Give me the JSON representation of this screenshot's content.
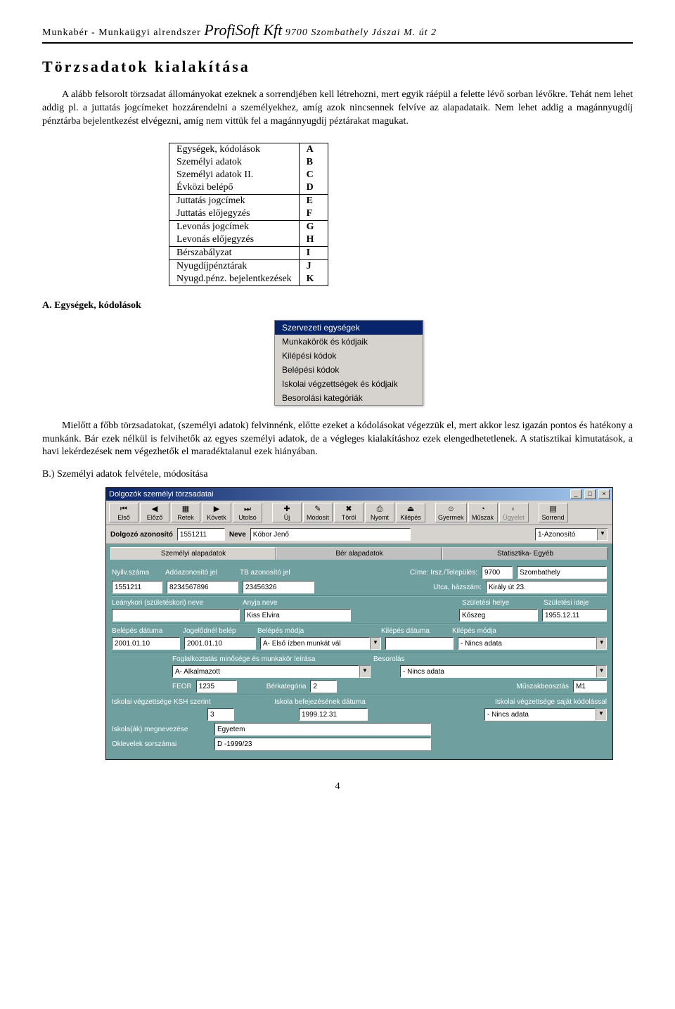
{
  "header": {
    "left": "Munkabér - Munkaügyi alrendszer",
    "company": "ProfiSoft Kft",
    "addr": "9700 Szombathely Jászai M. út 2"
  },
  "title": "Törzsadatok kialakítása",
  "para1": "A alább felsorolt törzsadat állományokat ezeknek a sorrendjében kell létrehozni, mert egyik ráépül a felette lévő sorban lévőkre. Tehát nem lehet addig pl. a juttatás jogcímeket hozzárendelni a személyekhez, amíg azok nincsennek felvíve az alapadataik. Nem lehet addig a magánnyugdíj pénztárba bejelentkezést elvégezni, amíg nem vittük fel a magánnyugdíj péztárakat magukat.",
  "codes": [
    {
      "label": "Egységek, kódolások",
      "letter": "A",
      "top": true
    },
    {
      "label": "Személyi adatok",
      "letter": "B"
    },
    {
      "label": "Személyi adatok II.",
      "letter": "C"
    },
    {
      "label": "Évközi belépő",
      "letter": "D",
      "bot": true
    },
    {
      "label": "Juttatás jogcímek",
      "letter": "E",
      "top": true
    },
    {
      "label": "Juttatás előjegyzés",
      "letter": "F",
      "bot": true
    },
    {
      "label": "Levonás jogcímek",
      "letter": "G",
      "top": true
    },
    {
      "label": "Levonás előjegyzés",
      "letter": "H",
      "bot": true
    },
    {
      "label": "Bérszabályzat",
      "letter": "I",
      "top": true,
      "bot": true
    },
    {
      "label": "Nyugdíjpénztárak",
      "letter": "J",
      "top": true
    },
    {
      "label": "Nyugd.pénz. bejelentkezések",
      "letter": "K",
      "bot": true
    }
  ],
  "subA": "A. Egységek, kódolások",
  "menu": {
    "items": [
      {
        "label": "Szervezeti egységek",
        "sel": true
      },
      {
        "label": "Munkakörök és kódjaik"
      },
      {
        "label": "Kilépési kódok"
      },
      {
        "label": "Belépési kódok"
      },
      {
        "label": "Iskolai végzettségek és kódjaik"
      },
      {
        "label": "Besorolási kategóriák"
      }
    ]
  },
  "para2": "Mielőtt a főbb törzsadatokat, (személyi adatok) felvinnénk, előtte ezeket a kódolásokat végezzük el, mert akkor lesz igazán pontos és hatékony a munkánk. Bár ezek nélkül is felvihetők az egyes személyi adatok, de a végleges kialakításhoz ezek elengedhetetlenek. A statisztikai kimutatások, a havi lekérdezések nem végezhetők el maradéktalanul ezek hiányában.",
  "subB": "B.) Személyi adatok felvétele, módosítása",
  "app": {
    "title": "Dolgozók személyi törzsadatai",
    "toolbar": [
      {
        "label": "Első",
        "ico": "⏮"
      },
      {
        "label": "Előző",
        "ico": "◀"
      },
      {
        "label": "Retek",
        "ico": "▦"
      },
      {
        "label": "Követk",
        "ico": "▶"
      },
      {
        "label": "Utolsó",
        "ico": "⏭"
      },
      {
        "gap": true
      },
      {
        "label": "Új",
        "ico": "✚"
      },
      {
        "label": "Módosít",
        "ico": "✎"
      },
      {
        "label": "Töröl",
        "ico": "✖"
      },
      {
        "label": "Nyomt",
        "ico": "⎙"
      },
      {
        "label": "Kilépés",
        "ico": "⏏"
      },
      {
        "gap": true
      },
      {
        "label": "Gyermek",
        "ico": "☺"
      },
      {
        "label": "Műszak",
        "ico": "◔"
      },
      {
        "label": "Ügyelet",
        "ico": "◐",
        "disabled": true
      },
      {
        "gap": true
      },
      {
        "label": "Sorrend",
        "ico": "▤"
      }
    ],
    "idrow": {
      "idlabel": "Dolgozó azonosító",
      "id": "1551211",
      "namelabel": "Neve",
      "name": "Kóbor Jenő",
      "mode": "1-Azonosító"
    },
    "tabs": [
      "Személyi alapadatok",
      "Bér alapadatok",
      "Statisztika- Egyéb"
    ],
    "r1": {
      "l1": "Nyilv.száma",
      "l2": "Adóazonosító jel",
      "l3": "TB azonosító jel",
      "l4": "Címe: Irsz./Település:",
      "l5": "Utca, házszám:",
      "v1": "1551211",
      "v2": "8234567896",
      "v3": "23456326",
      "v4a": "9700",
      "v4b": "Szombathely",
      "v5": "Király út 23."
    },
    "r2": {
      "l1": "Leánykori (születéskori) neve",
      "l2": "Anyja neve",
      "l3": "Születési helye",
      "l4": "Születési ideje",
      "v2": "Kiss Elvira",
      "v3": "Kőszeg",
      "v4": "1955.12.11"
    },
    "r3": {
      "l1": "Belépés dátuma",
      "l2": "Jogelődnél belép",
      "l3": "Belépés módja",
      "l4": "Kilépés dátuma",
      "l5": "Kilépés módja",
      "v1": "2001.01.10",
      "v2": "2001.01.10",
      "v3": "A- Első ízben munkát vál",
      "v5": "- Nincs adata"
    },
    "r4": {
      "l1": "Foglalkoztatás minősége és munkakör leírása",
      "l2": "Besorolás",
      "v1": "A- Alkalmazott",
      "v2": "- Nincs adata",
      "l3": "FEOR",
      "v3": "1235",
      "l4": "Bérkategória",
      "v4": "2",
      "l5": "Műszakbeosztás",
      "v5": "M1"
    },
    "r5": {
      "l1": "Iskolai végzettsége KSH szerint",
      "l2": "Iskola befejezésének dátuma",
      "l3": "Iskolai végzettsége saját kódolással",
      "v1": "3",
      "v2": "1999.12.31",
      "v3": "- Nincs adata"
    },
    "r6": {
      "l1": "Iskola(ák) megnevezése",
      "l2": "Oklevelek sorszámai",
      "v1": "Egyetem",
      "v2": "D -1999/23"
    }
  },
  "pagenum": "4"
}
